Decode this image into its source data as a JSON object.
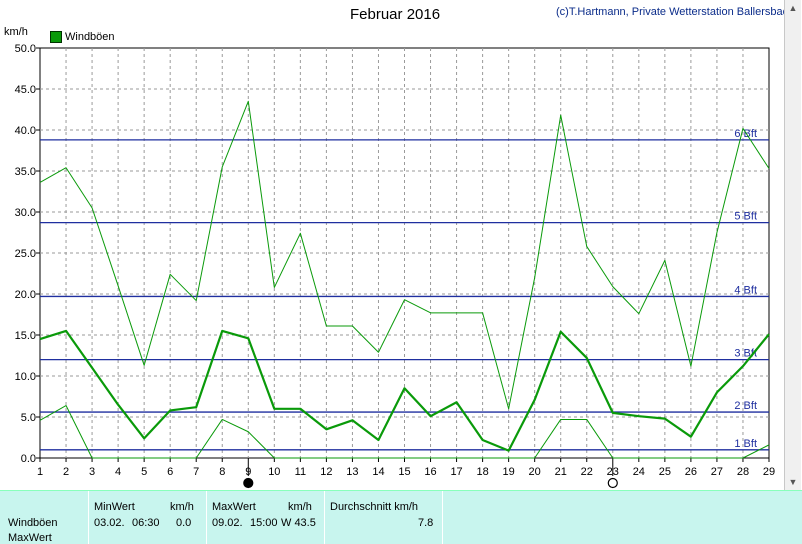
{
  "header": {
    "title": "Februar 2016",
    "copyright": "(c)T.Hartmann, Private Wetterstation Ballersbach",
    "unit": "km/h"
  },
  "colors": {
    "series": "#0a9a0a",
    "beaufort": "#1f2f9f",
    "grid": "#9a9a9a",
    "stats_bg": "#c8f5ee"
  },
  "chart_data": {
    "type": "line",
    "title": "Februar 2016",
    "ylabel": "km/h",
    "xlabel": "",
    "x": [
      1,
      2,
      3,
      4,
      5,
      6,
      7,
      8,
      9,
      10,
      11,
      12,
      13,
      14,
      15,
      16,
      17,
      18,
      19,
      20,
      21,
      22,
      23,
      24,
      25,
      26,
      27,
      28,
      29
    ],
    "xlim": [
      1,
      29
    ],
    "ylim": [
      0,
      50
    ],
    "yticks": [
      "0.0",
      "5.0",
      "10.0",
      "15.0",
      "20.0",
      "25.0",
      "30.0",
      "35.0",
      "40.0",
      "45.0",
      "50.0"
    ],
    "grid": true,
    "legend": "top-left",
    "legend_entries": [
      "Windböen"
    ],
    "series": [
      {
        "name": "Windböen",
        "role": "mean",
        "values": [
          14.5,
          15.5,
          11,
          6.5,
          2.4,
          5.8,
          6.2,
          15.5,
          14.6,
          6,
          6,
          3.5,
          4.6,
          2.2,
          8.5,
          5.1,
          6.8,
          2.2,
          0.9,
          7.1,
          15.4,
          12.2,
          5.5,
          5.1,
          4.8,
          2.6,
          8,
          11.2,
          15.1
        ]
      },
      {
        "values": [
          33.6,
          35.4,
          30.5,
          21,
          11.3,
          22.4,
          19.2,
          35.5,
          43.5,
          20.8,
          27.4,
          16.1,
          16.1,
          12.9,
          19.3,
          17.7,
          17.7,
          17.7,
          6,
          22,
          41.8,
          25.8,
          20.9,
          17.6,
          24.1,
          11.2,
          27.5,
          40.2,
          35.3
        ]
      },
      {
        "values": [
          4.6,
          6.4,
          0,
          0,
          0,
          0,
          0,
          4.7,
          3.2,
          0,
          0,
          0,
          0,
          0,
          0,
          0,
          0,
          0,
          0,
          0,
          4.7,
          4.7,
          0,
          0,
          0,
          0,
          0,
          0,
          1.6
        ]
      }
    ],
    "reference_lines": [
      {
        "label": "1 Bft",
        "value": 1
      },
      {
        "label": "2 Bft",
        "value": 5.6
      },
      {
        "label": "3 Bft",
        "value": 12
      },
      {
        "label": "4 Bft",
        "value": 19.7
      },
      {
        "label": "5 Bft",
        "value": 28.7
      },
      {
        "label": "6 Bft",
        "value": 38.8
      }
    ],
    "markers": [
      {
        "day": 9,
        "symbol": "filled-circle"
      },
      {
        "day": 23,
        "symbol": "open-circle"
      }
    ]
  },
  "stats": {
    "row_label": "Windböen",
    "row_label2": "MaxWert",
    "min": {
      "header": "MinWert",
      "unit": "km/h",
      "date": "03.02.",
      "time": "06:30",
      "value": "0.0"
    },
    "max": {
      "header": "MaxWert",
      "unit": "km/h",
      "date": "09.02.",
      "time": "15:00",
      "value": "W 43.5"
    },
    "avg": {
      "header": "Durchschnitt km/h",
      "value": "7.8"
    }
  }
}
